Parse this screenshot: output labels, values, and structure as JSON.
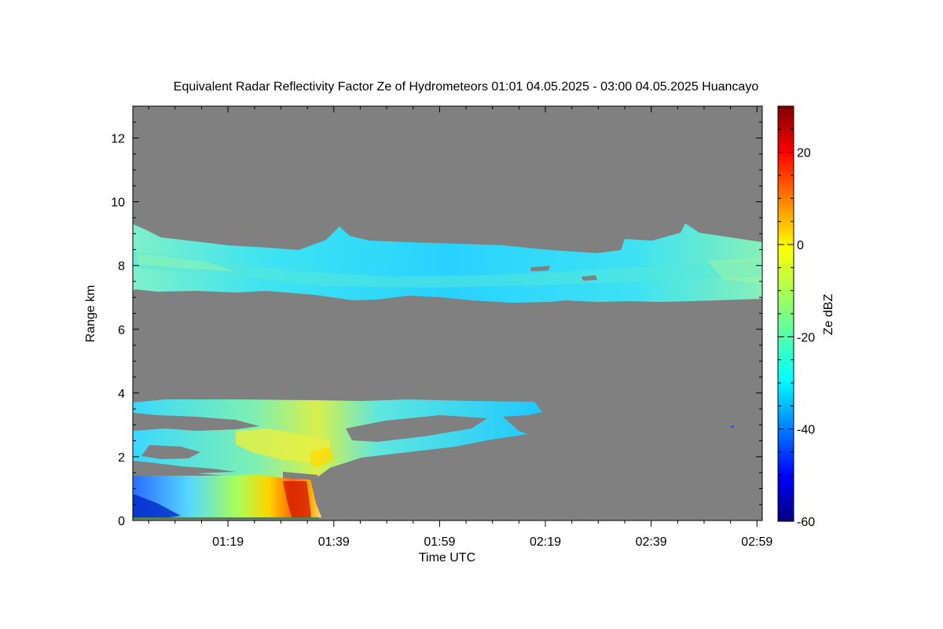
{
  "chart_data": {
    "type": "heatmap",
    "title": "Equivalent Radar Reflectivity Factor Ze of Hydrometeors   01:01 04.05.2025 - 03:00 04.05.2025 Huancayo",
    "xlabel": "Time UTC",
    "ylabel": "Range km",
    "xlim": [
      "01:01",
      "03:00"
    ],
    "ylim": [
      0,
      13
    ],
    "x_ticks": [
      "01:19",
      "01:39",
      "01:59",
      "02:19",
      "02:39",
      "02:59"
    ],
    "y_ticks": [
      0,
      2,
      4,
      6,
      8,
      10,
      12
    ],
    "colorbar": {
      "label": "Ze dBZ",
      "range": [
        -60,
        30
      ],
      "ticks": [
        -60,
        -40,
        -20,
        0,
        20
      ],
      "colormap": "jet"
    },
    "background_color": "#808080",
    "features": [
      {
        "name": "upper cloud layer",
        "time_start": "01:01",
        "time_end": "03:00",
        "base_km": 7.0,
        "top_km": 9.2,
        "ze_dbz": [
          -30,
          -20
        ]
      },
      {
        "name": "lower cloud layer",
        "time_start": "01:01",
        "time_end": "02:19",
        "base_km": 1.5,
        "top_km": 3.8,
        "ze_dbz": [
          -30,
          -10
        ]
      },
      {
        "name": "precipitation",
        "time_start": "01:01",
        "time_end": "01:39",
        "base_km": 0.1,
        "top_km": 1.5,
        "ze_dbz": [
          -40,
          10
        ]
      }
    ]
  }
}
